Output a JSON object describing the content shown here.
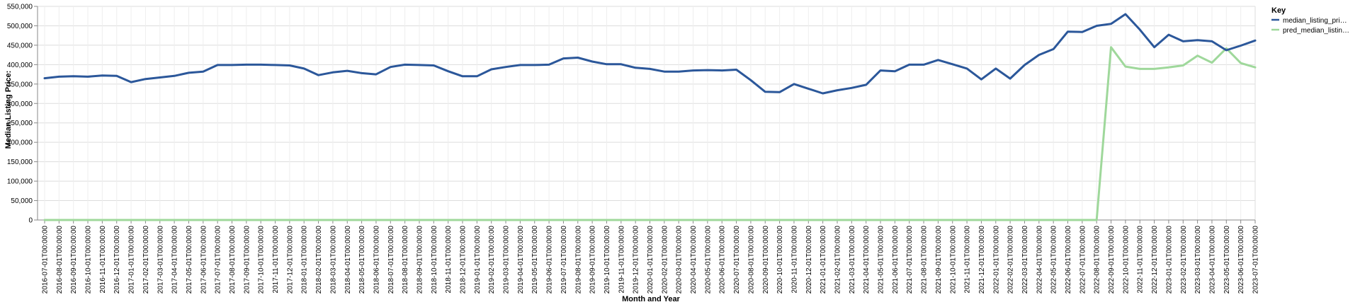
{
  "chart_data": {
    "type": "line",
    "xlabel": "Month and Year",
    "ylabel": "Median Listing Price:",
    "ylim": [
      0,
      550000
    ],
    "y_ticks": [
      "0",
      "50,000",
      "100,000",
      "150,000",
      "200,000",
      "250,000",
      "300,000",
      "350,000",
      "400,000",
      "450,000",
      "500,000",
      "550,000"
    ],
    "grid": true,
    "legend": {
      "title": "Key",
      "placement": "top-right"
    },
    "categories": [
      "2016-07-01T00:00:00",
      "2016-08-01T00:00:00",
      "2016-09-01T00:00:00",
      "2016-10-01T00:00:00",
      "2016-11-01T00:00:00",
      "2016-12-01T00:00:00",
      "2017-01-01T00:00:00",
      "2017-02-01T00:00:00",
      "2017-03-01T00:00:00",
      "2017-04-01T00:00:00",
      "2017-05-01T00:00:00",
      "2017-06-01T00:00:00",
      "2017-07-01T00:00:00",
      "2017-08-01T00:00:00",
      "2017-09-01T00:00:00",
      "2017-10-01T00:00:00",
      "2017-11-01T00:00:00",
      "2017-12-01T00:00:00",
      "2018-01-01T00:00:00",
      "2018-02-01T00:00:00",
      "2018-03-01T00:00:00",
      "2018-04-01T00:00:00",
      "2018-05-01T00:00:00",
      "2018-06-01T00:00:00",
      "2018-07-01T00:00:00",
      "2018-08-01T00:00:00",
      "2018-09-01T00:00:00",
      "2018-10-01T00:00:00",
      "2018-11-01T00:00:00",
      "2018-12-01T00:00:00",
      "2019-01-01T00:00:00",
      "2019-02-01T00:00:00",
      "2019-03-01T00:00:00",
      "2019-04-01T00:00:00",
      "2019-05-01T00:00:00",
      "2019-06-01T00:00:00",
      "2019-07-01T00:00:00",
      "2019-08-01T00:00:00",
      "2019-09-01T00:00:00",
      "2019-10-01T00:00:00",
      "2019-11-01T00:00:00",
      "2019-12-01T00:00:00",
      "2020-01-01T00:00:00",
      "2020-02-01T00:00:00",
      "2020-03-01T00:00:00",
      "2020-04-01T00:00:00",
      "2020-05-01T00:00:00",
      "2020-06-01T00:00:00",
      "2020-07-01T00:00:00",
      "2020-08-01T00:00:00",
      "2020-09-01T00:00:00",
      "2020-10-01T00:00:00",
      "2020-11-01T00:00:00",
      "2020-12-01T00:00:00",
      "2021-01-01T00:00:00",
      "2021-02-01T00:00:00",
      "2021-03-01T00:00:00",
      "2021-04-01T00:00:00",
      "2021-05-01T00:00:00",
      "2021-06-01T00:00:00",
      "2021-07-01T00:00:00",
      "2021-08-01T00:00:00",
      "2021-09-01T00:00:00",
      "2021-10-01T00:00:00",
      "2021-11-01T00:00:00",
      "2021-12-01T00:00:00",
      "2022-01-01T00:00:00",
      "2022-02-01T00:00:00",
      "2022-03-01T00:00:00",
      "2022-04-01T00:00:00",
      "2022-05-01T00:00:00",
      "2022-06-01T00:00:00",
      "2022-07-01T00:00:00",
      "2022-08-01T00:00:00",
      "2022-09-01T00:00:00",
      "2022-10-01T00:00:00",
      "2022-11-01T00:00:00",
      "2022-12-01T00:00:00",
      "2023-01-01T00:00:00",
      "2023-02-01T00:00:00",
      "2023-03-01T00:00:00",
      "2023-04-01T00:00:00",
      "2023-05-01T00:00:00",
      "2023-06-01T00:00:00",
      "2023-07-01T00:00:00"
    ],
    "series": [
      {
        "name": "median_listing_pri…",
        "color": "#2b579a",
        "values": [
          365000,
          369000,
          370000,
          369000,
          372000,
          371000,
          355000,
          363000,
          367000,
          371000,
          379000,
          382000,
          399000,
          399000,
          400000,
          400000,
          399000,
          398000,
          390000,
          373000,
          380000,
          384000,
          378000,
          375000,
          394000,
          400000,
          399000,
          398000,
          383000,
          370000,
          370000,
          388000,
          394000,
          399000,
          399000,
          400000,
          416000,
          418000,
          408000,
          401000,
          401000,
          392000,
          389000,
          382000,
          382000,
          385000,
          386000,
          385000,
          387000,
          360000,
          330000,
          329000,
          350000,
          338000,
          326000,
          334000,
          340000,
          348000,
          385000,
          383000,
          400000,
          400000,
          412000,
          401000,
          390000,
          362000,
          390000,
          364000,
          399000,
          425000,
          440000,
          485000,
          484000,
          500000,
          505000,
          530000,
          490000,
          445000,
          477000,
          460000,
          463000,
          460000,
          437000,
          449000,
          462000
        ]
      },
      {
        "name": "pred_median_listin…",
        "color": "#9fd89b",
        "values": [
          0,
          0,
          0,
          0,
          0,
          0,
          0,
          0,
          0,
          0,
          0,
          0,
          0,
          0,
          0,
          0,
          0,
          0,
          0,
          0,
          0,
          0,
          0,
          0,
          0,
          0,
          0,
          0,
          0,
          0,
          0,
          0,
          0,
          0,
          0,
          0,
          0,
          0,
          0,
          0,
          0,
          0,
          0,
          0,
          0,
          0,
          0,
          0,
          0,
          0,
          0,
          0,
          0,
          0,
          0,
          0,
          0,
          0,
          0,
          0,
          0,
          0,
          0,
          0,
          0,
          0,
          0,
          0,
          0,
          0,
          0,
          0,
          0,
          0,
          445000,
          395000,
          389000,
          389000,
          393000,
          398000,
          423000,
          405000,
          442000,
          404000,
          393000
        ]
      }
    ]
  }
}
